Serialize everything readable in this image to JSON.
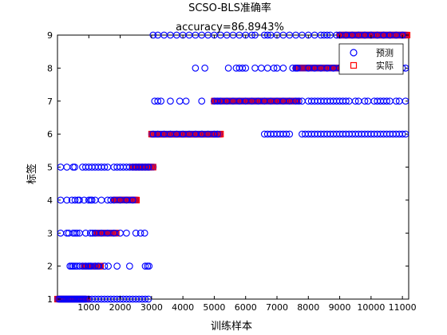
{
  "chart_data": {
    "type": "scatter",
    "title": "SCSO-BLS准确率",
    "subtitle": "accuracy=86.8943%",
    "xlabel": "训练样本",
    "ylabel": "标签",
    "xlim": [
      0,
      11200
    ],
    "ylim": [
      1,
      9
    ],
    "xticks": [
      1000,
      2000,
      3000,
      4000,
      5000,
      6000,
      7000,
      8000,
      9000,
      10000,
      11000
    ],
    "yticks": [
      1,
      2,
      3,
      4,
      5,
      6,
      7,
      8,
      9
    ],
    "grid": false,
    "legend": {
      "position": "top-right",
      "entries": [
        "预测",
        "实际"
      ]
    },
    "colors": {
      "predicted": "#0000ff",
      "actual": "#ff0000"
    },
    "series": [
      {
        "name": "预测",
        "marker": "circle",
        "color": "#0000ff",
        "clusters": [
          {
            "y": 1,
            "x": [
              50,
              100,
              150,
              200,
              250,
              300,
              350,
              400,
              450,
              500,
              550,
              600,
              650,
              700,
              750,
              800,
              850,
              900,
              1000,
              1100,
              1200,
              1300,
              1400,
              1500,
              1600,
              1700,
              1800,
              1900,
              2000,
              2100,
              2200,
              2300,
              2400,
              2500,
              2600,
              2700,
              2800,
              2900
            ]
          },
          {
            "y": 2,
            "x": [
              400,
              450,
              500,
              560,
              620,
              700,
              800,
              900,
              1000,
              1060,
              1200,
              1300,
              1500,
              1620,
              1900,
              2300,
              2800,
              2870,
              2920
            ]
          },
          {
            "y": 3,
            "x": [
              100,
              300,
              360,
              500,
              560,
              620,
              700,
              900,
              1050,
              1120,
              1200,
              1400,
              1600,
              1800,
              2000,
              2200,
              2500,
              2650,
              2780
            ]
          },
          {
            "y": 4,
            "x": [
              100,
              300,
              460,
              560,
              650,
              700,
              850,
              1000,
              1060,
              1100,
              1200,
              1400,
              1600,
              1700,
              1800,
              2000,
              2200,
              2400
            ]
          },
          {
            "y": 5,
            "x": [
              100,
              300,
              500,
              550,
              800,
              900,
              1000,
              1100,
              1200,
              1300,
              1400,
              1500,
              1600,
              1800,
              1900,
              2000,
              2100,
              2200,
              2300,
              2400,
              2500,
              2600,
              2700,
              2800,
              2900
            ]
          },
          {
            "y": 6,
            "x": [
              3050,
              3200,
              3400,
              3600,
              3800,
              4000,
              4200,
              4400,
              4600,
              4800,
              5000,
              5100,
              6600,
              6700,
              6800,
              6900,
              7000,
              7100,
              7200,
              7300,
              7400,
              7800,
              7900,
              8000,
              8100,
              8200,
              8300,
              8400,
              8500,
              8600,
              8700,
              8800,
              8900,
              9000,
              9100,
              9200,
              9300,
              9400,
              9500,
              9600,
              9700,
              9800,
              9900,
              10000,
              10100,
              10200,
              10300,
              10400,
              10500,
              10600,
              10700,
              10800,
              10900,
              11000,
              11100
            ]
          },
          {
            "y": 7,
            "x": [
              3100,
              3200,
              3300,
              3600,
              3900,
              4100,
              4600,
              5000,
              5100,
              5200,
              5400,
              5600,
              5800,
              6000,
              6200,
              6400,
              6600,
              6800,
              7000,
              7200,
              7400,
              7600,
              7700,
              7800,
              8000,
              8100,
              8200,
              8300,
              8400,
              8500,
              8600,
              8700,
              8800,
              8900,
              9000,
              9100,
              9200,
              9300,
              9500,
              9600,
              9800,
              9900,
              10100,
              10200,
              10300,
              10400,
              10500,
              10600,
              10800,
              10900,
              11100
            ]
          },
          {
            "y": 8,
            "x": [
              4400,
              4700,
              5450,
              5700,
              5800,
              5900,
              6000,
              6300,
              6500,
              6700,
              6900,
              7000,
              7200,
              7500,
              7600,
              7650,
              8000,
              8200,
              8400,
              8600,
              8800,
              9000,
              9100,
              9200,
              9400,
              9500,
              9600,
              9700,
              9900,
              10000,
              10100,
              10200,
              10300,
              10400,
              10600,
              10700,
              10900,
              11000,
              11100
            ]
          },
          {
            "y": 9,
            "x": [
              3050,
              3200,
              3400,
              3600,
              3800,
              4000,
              4200,
              4400,
              4600,
              4800,
              5000,
              5200,
              5400,
              5600,
              5800,
              6000,
              6200,
              6300,
              6600,
              6700,
              6800,
              7000,
              7200,
              7400,
              7600,
              7800,
              8000,
              8200,
              8400,
              8500,
              8600,
              8700,
              8900,
              9000,
              9200,
              9400,
              9600,
              9800,
              10000,
              10200,
              10400,
              10600,
              10800,
              11000
            ]
          }
        ]
      },
      {
        "name": "实际",
        "marker": "square",
        "color": "#ff0000",
        "ranges": [
          {
            "y": 1,
            "from": 0,
            "to": 960
          },
          {
            "y": 2,
            "from": 850,
            "to": 1380
          },
          {
            "y": 3,
            "from": 1250,
            "to": 1880
          },
          {
            "y": 4,
            "from": 1820,
            "to": 2520
          },
          {
            "y": 5,
            "from": 2400,
            "to": 3060
          },
          {
            "y": 6,
            "from": 3000,
            "to": 5200
          },
          {
            "y": 7,
            "from": 5000,
            "to": 7660
          },
          {
            "y": 8,
            "from": 7620,
            "to": 9100
          },
          {
            "y": 9,
            "from": 9000,
            "to": 11150
          }
        ]
      }
    ]
  }
}
